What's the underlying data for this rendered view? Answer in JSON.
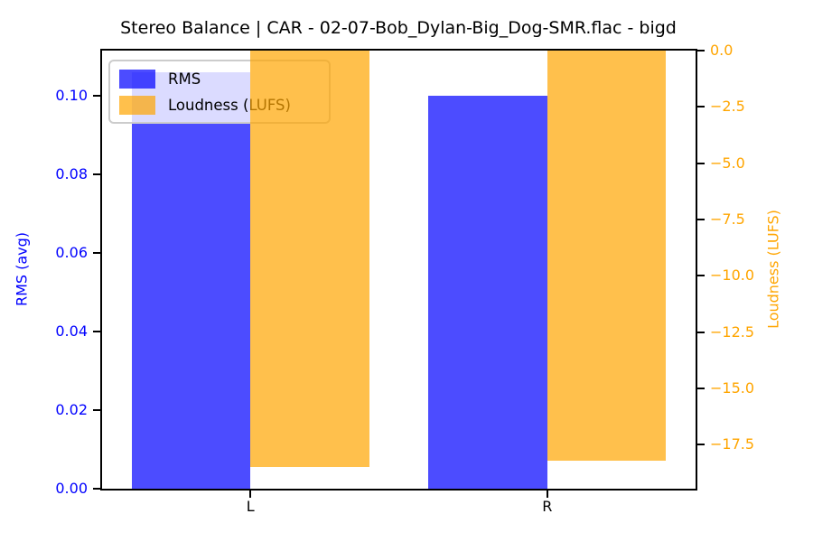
{
  "title": "Stereo Balance | CAR - 02-07-Bob_Dylan-Big_Dog-SMR.flac - bigd",
  "chart_data": {
    "type": "bar",
    "categories": [
      "L",
      "R"
    ],
    "series": [
      {
        "name": "RMS",
        "axis": "left",
        "color": "rgba(0,0,255,0.7)",
        "values": [
          0.106,
          0.1
        ]
      },
      {
        "name": "Loudness (LUFS)",
        "axis": "right",
        "color": "rgba(255,165,0,0.7)",
        "values": [
          -18.5,
          -18.2
        ]
      }
    ],
    "axes": {
      "left": {
        "label": "RMS (avg)",
        "color": "#0000ff",
        "ylim": [
          0,
          0.1114
        ],
        "ticks": [
          {
            "v": 0.0,
            "label": "0.00"
          },
          {
            "v": 0.02,
            "label": "0.02"
          },
          {
            "v": 0.04,
            "label": "0.04"
          },
          {
            "v": 0.06,
            "label": "0.06"
          },
          {
            "v": 0.08,
            "label": "0.08"
          },
          {
            "v": 0.1,
            "label": "0.10"
          }
        ]
      },
      "right": {
        "label": "Loudness (LUFS)",
        "color": "#ffa500",
        "ylim": [
          -19.45,
          0
        ],
        "ticks": [
          {
            "v": 0.0,
            "label": "0.0"
          },
          {
            "v": -2.5,
            "label": "−2.5"
          },
          {
            "v": -5.0,
            "label": "−5.0"
          },
          {
            "v": -7.5,
            "label": "−7.5"
          },
          {
            "v": -10.0,
            "label": "−10.0"
          },
          {
            "v": -12.5,
            "label": "−12.5"
          },
          {
            "v": -15.0,
            "label": "−15.0"
          },
          {
            "v": -17.5,
            "label": "−17.5"
          }
        ]
      }
    },
    "legend": {
      "position": "upper-left",
      "entries": [
        "RMS",
        "Loudness (LUFS)"
      ]
    },
    "bar_width_fraction": 0.4,
    "grid": false
  }
}
